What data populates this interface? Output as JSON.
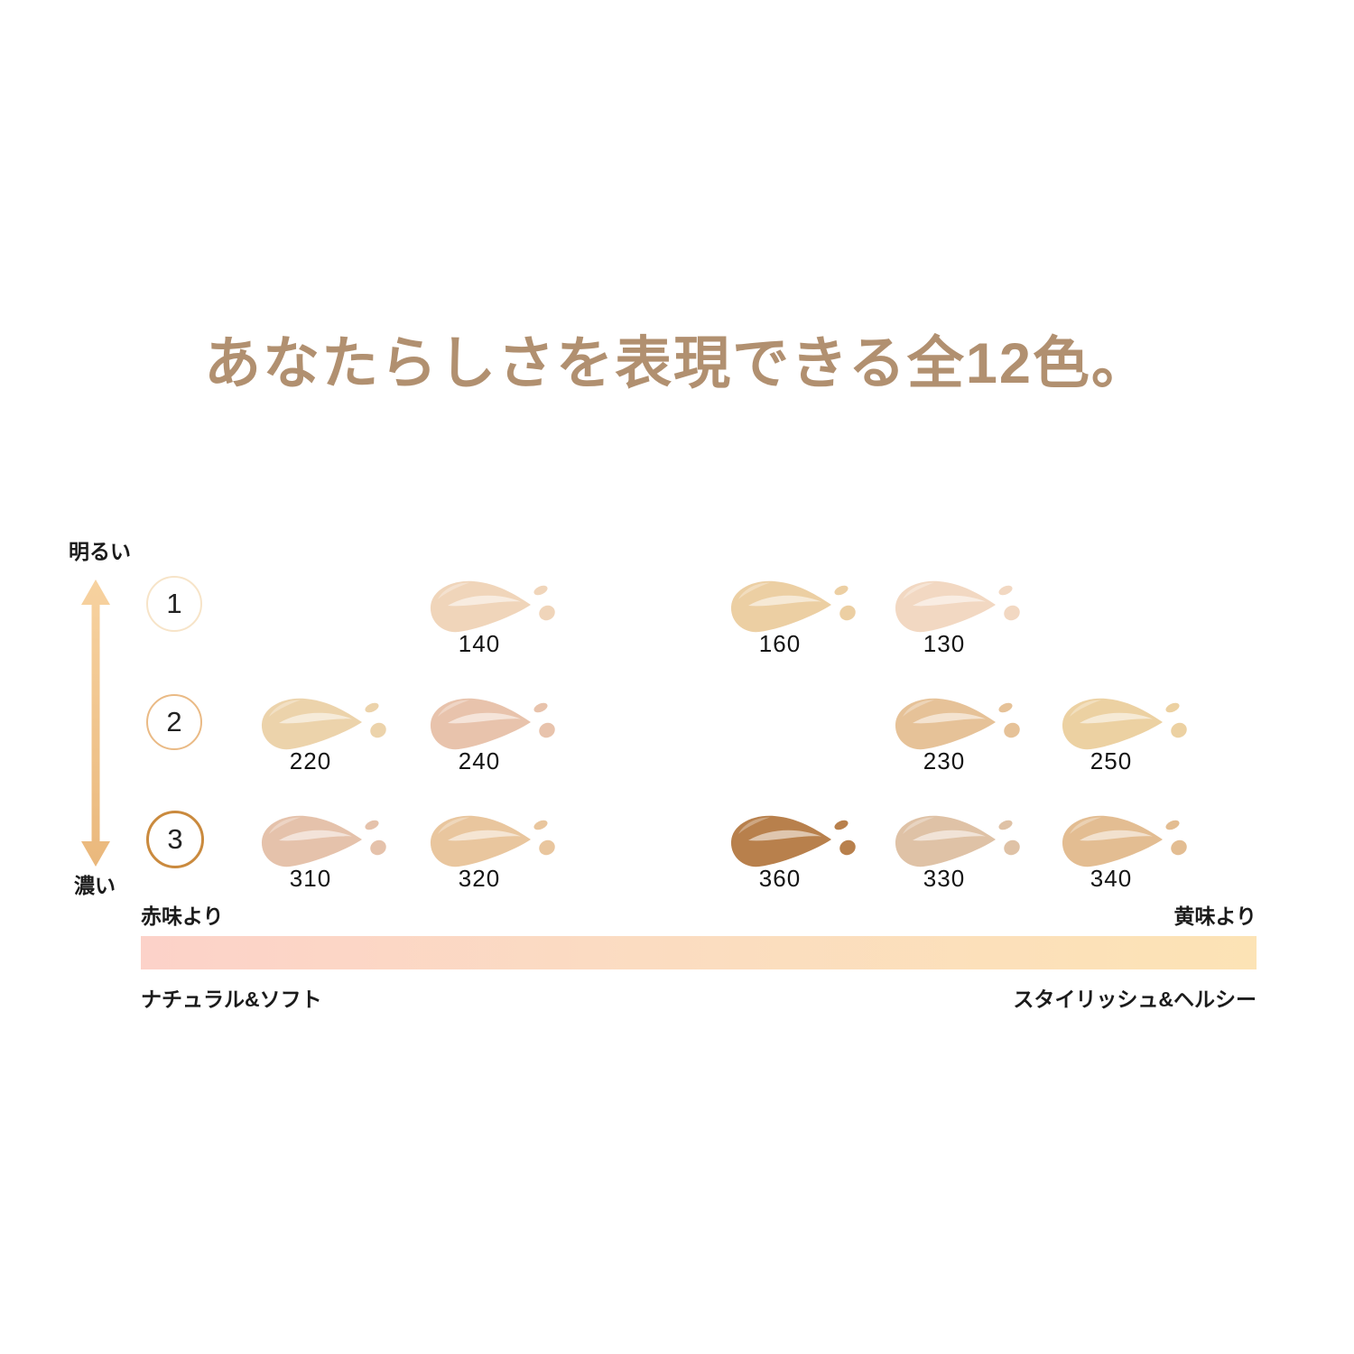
{
  "page": {
    "background": "#ffffff"
  },
  "title": {
    "text": "あなたらしさを表現できる全12色。",
    "color": "#b19070"
  },
  "chart_data": {
    "type": "scatter",
    "title": "あなたらしさを表現できる全12色。",
    "description": "Foundation shade map: 12 shades arranged by brightness level (rows 1-3) and undertone (red to yellow)",
    "y_axis": {
      "top_label": "明るい",
      "bottom_label": "濃い",
      "levels": [
        "1",
        "2",
        "3"
      ],
      "level_circle_colors": [
        "#f7e4c8",
        "#eaba85",
        "#ca8a3e"
      ]
    },
    "x_axis": {
      "left_label": "赤味より",
      "right_label": "黄味より",
      "left_sublabel": "ナチュラル&ソフト",
      "right_sublabel": "スタイリッシュ&ヘルシー"
    },
    "shades": [
      {
        "id": "140",
        "row": 1,
        "col": "b",
        "color": "#f0d5ba"
      },
      {
        "id": "160",
        "row": 1,
        "col": "c",
        "color": "#eccfa3"
      },
      {
        "id": "130",
        "row": 1,
        "col": "d",
        "color": "#f2d8c2"
      },
      {
        "id": "220",
        "row": 2,
        "col": "a",
        "color": "#ecd3ab"
      },
      {
        "id": "240",
        "row": 2,
        "col": "b",
        "color": "#e8c3ac"
      },
      {
        "id": "230",
        "row": 2,
        "col": "d",
        "color": "#e6c298"
      },
      {
        "id": "250",
        "row": 2,
        "col": "e",
        "color": "#ecd1a2"
      },
      {
        "id": "310",
        "row": 3,
        "col": "a",
        "color": "#e5c2ab"
      },
      {
        "id": "320",
        "row": 3,
        "col": "b",
        "color": "#e9c69e"
      },
      {
        "id": "360",
        "row": 3,
        "col": "c",
        "color": "#b8804c"
      },
      {
        "id": "330",
        "row": 3,
        "col": "d",
        "color": "#dfc2a6"
      },
      {
        "id": "340",
        "row": 3,
        "col": "e",
        "color": "#e3bd92"
      }
    ],
    "gradient_bar": {
      "from": "#fcd2c9",
      "via": "#fbdcc1",
      "to": "#fce3b5"
    },
    "arrow": {
      "from": "#f7d2a0",
      "to": "#eab87c"
    }
  }
}
